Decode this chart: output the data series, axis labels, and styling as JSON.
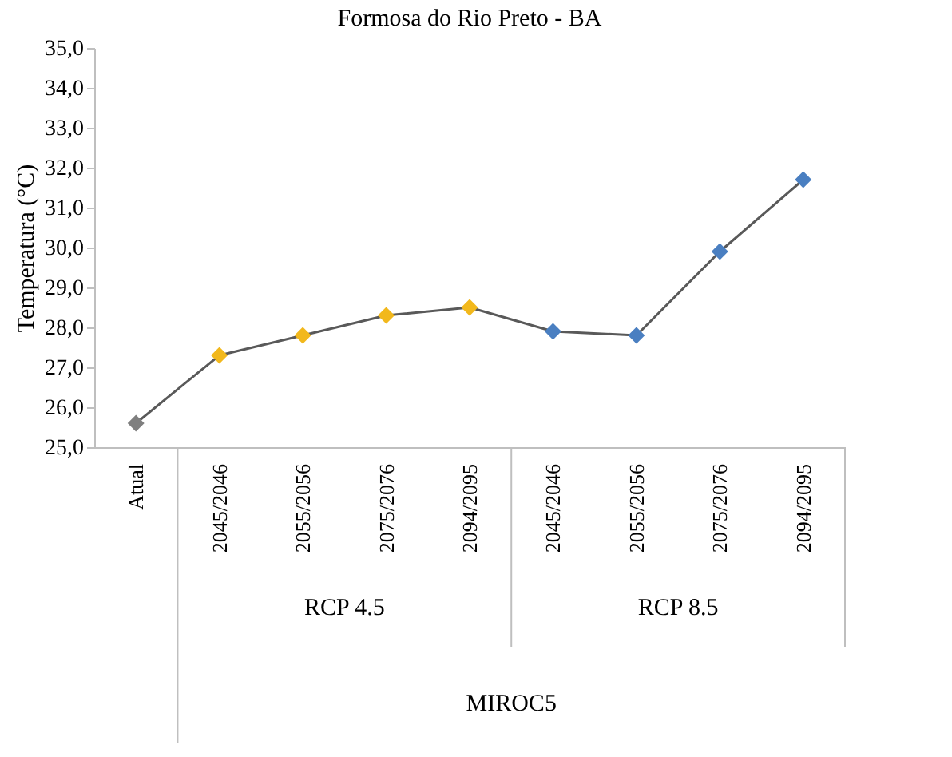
{
  "chart_data": {
    "type": "line",
    "title": "Formosa  do Rio Preto - BA",
    "ylabel": "Temperatura (°C)",
    "categories": [
      "Atual",
      "2045/2046",
      "2055/2056",
      "2075/2076",
      "2094/2095",
      "2045/2046",
      "2055/2056",
      "2075/2076",
      "2094/2095"
    ],
    "values": [
      25.6,
      27.3,
      27.8,
      28.3,
      28.5,
      27.9,
      27.8,
      29.9,
      31.7
    ],
    "color": "#595959",
    "colors": [
      "#7f7f7f",
      "#f2b81c",
      "#f2b81c",
      "#f2b81c",
      "#f2b81c",
      "#4a7fc1",
      "#4a7fc1",
      "#4a7fc1",
      "#4a7fc1"
    ],
    "marker": "diamond",
    "grid": false,
    "ylim": [
      25,
      35
    ],
    "yticks": [
      {
        "value": 25,
        "label": "25,0"
      },
      {
        "value": 26,
        "label": "26,0"
      },
      {
        "value": 27,
        "label": "27,0"
      },
      {
        "value": 28,
        "label": "28,0"
      },
      {
        "value": 29,
        "label": "29,0"
      },
      {
        "value": 30,
        "label": "30,0"
      },
      {
        "value": 31,
        "label": "31,0"
      },
      {
        "value": 32,
        "label": "32,0"
      },
      {
        "value": 33,
        "label": "33,0"
      },
      {
        "value": 34,
        "label": "34,0"
      },
      {
        "value": 35,
        "label": "35,0"
      }
    ],
    "annotations": [
      "RCP 4.5",
      "RCP 8.5",
      "MIROC5"
    ]
  }
}
